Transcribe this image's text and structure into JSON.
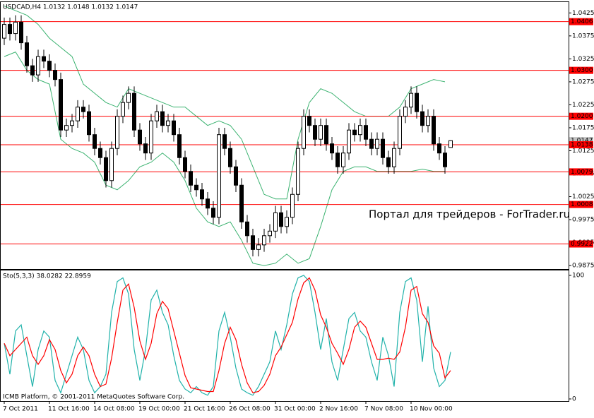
{
  "chart_data": [
    {
      "type": "candlestick",
      "title": "USDCAD,H4  1.0132 1.0148 1.0132 1.0147",
      "watermark": "Портал для трейдеров - ForTrader.ru",
      "categories": [
        "7 Oct 2011",
        null,
        null,
        null,
        null,
        null,
        null,
        null,
        "11 Oct 16:00",
        null,
        null,
        null,
        null,
        null,
        null,
        null,
        "14 Oct 08:00",
        null,
        null,
        null,
        null,
        null,
        null,
        null,
        "19 Oct 00:00",
        null,
        null,
        null,
        null,
        null,
        null,
        null,
        "21 Oct 16:00",
        null,
        null,
        null,
        null,
        null,
        null,
        null,
        "26 Oct 08:00",
        null,
        null,
        null,
        null,
        null,
        null,
        null,
        "31 Oct 00:00",
        null,
        null,
        null,
        null,
        null,
        null,
        null,
        "2 Nov 16:00",
        null,
        null,
        null,
        null,
        null,
        null,
        null,
        "7 Nov 08:00",
        null,
        null,
        null,
        null,
        null,
        null,
        null,
        "10 Nov 00:00",
        null,
        null,
        null,
        null,
        null,
        null,
        null
      ],
      "open": [
        1.037,
        1.04,
        1.038,
        1.0405,
        1.036,
        1.031,
        1.029,
        1.033,
        1.032,
        1.03,
        1.028,
        1.017,
        1.018,
        1.019,
        1.022,
        1.021,
        1.016,
        1.013,
        1.011,
        1.006,
        1.013,
        1.02,
        1.023,
        1.025,
        1.017,
        1.014,
        1.012,
        1.019,
        1.021,
        1.018,
        1.019,
        1.016,
        1.011,
        1.008,
        1.005,
        1.004,
        1.002,
        1.0,
        0.998,
        1.016,
        1.013,
        1.009,
        1.005,
        0.997,
        0.994,
        0.991,
        0.992,
        0.994,
        0.995,
        0.999,
        0.996,
        0.998,
        1.003,
        1.013,
        1.02,
        1.018,
        1.015,
        1.018,
        1.014,
        1.012,
        1.009,
        1.012,
        1.017,
        1.016,
        1.018,
        1.015,
        1.013,
        1.015,
        1.011,
        1.009,
        1.013,
        1.02,
        1.022,
        1.025,
        1.021,
        1.018,
        1.02,
        1.014,
        1.012,
        1.0132
      ],
      "high": [
        1.0415,
        1.0415,
        1.042,
        1.042,
        1.0375,
        1.0325,
        1.0345,
        1.0345,
        1.0335,
        1.0315,
        1.0295,
        1.0195,
        1.0205,
        1.0235,
        1.0235,
        1.0225,
        1.0175,
        1.0145,
        1.0125,
        1.0145,
        1.0215,
        1.0245,
        1.0265,
        1.0265,
        1.0185,
        1.0155,
        1.0205,
        1.0225,
        1.0225,
        1.0205,
        1.0205,
        1.0175,
        1.0125,
        1.0095,
        1.0065,
        1.0055,
        1.0035,
        1.0015,
        1.0175,
        1.0175,
        1.0145,
        1.0105,
        1.0065,
        0.9985,
        0.9955,
        0.9935,
        0.9955,
        0.9965,
        1.0005,
        1.0005,
        0.9995,
        1.0045,
        1.0145,
        1.0215,
        1.0215,
        1.0195,
        1.0195,
        1.0195,
        1.0155,
        1.0135,
        1.0135,
        1.0185,
        1.0185,
        1.0195,
        1.0195,
        1.0165,
        1.0165,
        1.0165,
        1.0125,
        1.0145,
        1.0215,
        1.0235,
        1.0265,
        1.0265,
        1.0225,
        1.0215,
        1.0215,
        1.0155,
        1.0135,
        1.0148
      ],
      "low": [
        1.0355,
        1.0365,
        1.0365,
        1.0345,
        1.0295,
        1.0275,
        1.0275,
        1.0305,
        1.0285,
        1.0265,
        1.0155,
        1.0155,
        1.0165,
        1.0175,
        1.0195,
        1.0145,
        1.0115,
        1.0095,
        1.0045,
        1.0045,
        1.0115,
        1.0185,
        1.0215,
        1.0155,
        1.0125,
        1.0105,
        1.0105,
        1.0175,
        1.0165,
        1.0165,
        1.0145,
        1.0095,
        1.0065,
        1.0035,
        1.0025,
        1.0005,
        0.9985,
        0.9965,
        0.9965,
        1.0115,
        1.0075,
        1.0035,
        0.9955,
        0.9925,
        0.9895,
        0.9895,
        0.9905,
        0.9925,
        0.9935,
        0.9945,
        0.9945,
        0.9965,
        1.0015,
        1.0115,
        1.0165,
        1.0135,
        1.0135,
        1.0125,
        1.0105,
        1.0075,
        1.0075,
        1.0105,
        1.0145,
        1.0145,
        1.0135,
        1.0115,
        1.0115,
        1.0095,
        1.0075,
        1.0075,
        1.0115,
        1.0185,
        1.0205,
        1.0195,
        1.0165,
        1.0165,
        1.0125,
        1.0105,
        1.0075,
        1.0132
      ],
      "close": [
        1.04,
        1.038,
        1.0405,
        1.036,
        1.031,
        1.029,
        1.033,
        1.032,
        1.03,
        1.028,
        1.017,
        1.018,
        1.019,
        1.022,
        1.021,
        1.016,
        1.013,
        1.011,
        1.006,
        1.013,
        1.02,
        1.023,
        1.025,
        1.017,
        1.014,
        1.012,
        1.019,
        1.021,
        1.018,
        1.019,
        1.016,
        1.011,
        1.008,
        1.005,
        1.004,
        1.002,
        1.0,
        0.998,
        1.016,
        1.013,
        1.009,
        1.005,
        0.997,
        0.994,
        0.991,
        0.992,
        0.994,
        0.995,
        0.999,
        0.996,
        0.998,
        1.003,
        1.013,
        1.02,
        1.018,
        1.015,
        1.018,
        1.014,
        1.012,
        1.009,
        1.012,
        1.017,
        1.016,
        1.018,
        1.015,
        1.013,
        1.015,
        1.011,
        1.009,
        1.013,
        1.02,
        1.022,
        1.025,
        1.021,
        1.018,
        1.02,
        1.014,
        1.012,
        1.009,
        1.0147
      ],
      "band_x": [
        0,
        2,
        4,
        6,
        8,
        10,
        12,
        14,
        16,
        18,
        20,
        22,
        24,
        26,
        28,
        30,
        32,
        34,
        36,
        38,
        40,
        42,
        44,
        46,
        48,
        50,
        52,
        54,
        56,
        58,
        60,
        62,
        64,
        66,
        68,
        70,
        72,
        74,
        76,
        78
      ],
      "bands": [
        {
          "color": "#3cb371",
          "values": [
            1.044,
            1.043,
            1.042,
            1.04,
            1.037,
            1.035,
            1.033,
            1.027,
            1.025,
            1.023,
            1.022,
            1.026,
            1.025,
            1.024,
            1.023,
            1.022,
            1.022,
            1.02,
            1.018,
            1.019,
            1.018,
            1.015,
            1.009,
            1.003,
            1.002,
            1.002,
            1.015,
            1.023,
            1.026,
            1.025,
            1.023,
            1.021,
            1.02,
            1.02,
            1.02,
            1.022,
            1.026,
            1.027,
            1.028,
            1.0275
          ]
        },
        {
          "color": "#3cb371",
          "values": [
            1.033,
            1.034,
            1.03,
            1.028,
            1.027,
            1.015,
            1.013,
            1.012,
            1.01,
            1.005,
            1.004,
            1.006,
            1.009,
            1.01,
            1.012,
            1.01,
            1.006,
            1.0,
            0.997,
            0.996,
            0.997,
            0.993,
            0.988,
            0.9875,
            0.988,
            0.99,
            0.988,
            0.989,
            0.996,
            1.004,
            1.008,
            1.009,
            1.009,
            1.008,
            1.008,
            1.008,
            1.008,
            1.0085,
            1.008,
            1.008
          ]
        }
      ],
      "levels": [
        1.0406,
        {
          "value": 1.03,
          "label": "1.0300"
        },
        {
          "value": 1.02,
          "label": "1.0200"
        },
        1.0138,
        1.0079,
        1.0008,
        0.9922
      ],
      "level_color": "#ff0000",
      "last_price": 1.0147,
      "ylim": [
        0.9869,
        1.0447
      ],
      "yticks": [
        1.0425,
        1.0375,
        1.0325,
        1.0275,
        1.0225,
        1.0175,
        1.0125,
        1.0075,
        1.0025,
        0.9975,
        0.9925,
        0.9875
      ]
    },
    {
      "type": "line",
      "title": "Sto(5,3,3) 38.0282 22.8959",
      "footer": "ICMB Platform, © 2001-2011 MetaQuotes Software Corp.",
      "series": [
        {
          "color": "#20b2aa",
          "values": [
            45,
            20,
            55,
            60,
            35,
            10,
            40,
            55,
            50,
            15,
            5,
            20,
            35,
            50,
            40,
            15,
            5,
            10,
            20,
            70,
            95,
            98,
            85,
            40,
            15,
            40,
            80,
            88,
            70,
            60,
            35,
            15,
            8,
            5,
            10,
            5,
            3,
            10,
            55,
            70,
            50,
            25,
            8,
            5,
            3,
            10,
            20,
            30,
            55,
            40,
            60,
            85,
            98,
            100,
            95,
            70,
            40,
            65,
            30,
            15,
            40,
            65,
            70,
            55,
            50,
            30,
            15,
            50,
            35,
            10,
            70,
            95,
            98,
            80,
            30,
            75,
            25,
            10,
            15,
            38
          ]
        },
        {
          "color": "#ff0000",
          "values": [
            45,
            35,
            40,
            45,
            50,
            35,
            28,
            35,
            48,
            40,
            23,
            13,
            20,
            35,
            42,
            35,
            20,
            10,
            12,
            33,
            62,
            88,
            93,
            74,
            47,
            32,
            45,
            69,
            79,
            73,
            55,
            37,
            19,
            9,
            8,
            7,
            6,
            6,
            23,
            45,
            58,
            48,
            28,
            13,
            5,
            6,
            11,
            20,
            35,
            42,
            52,
            62,
            81,
            94,
            98,
            88,
            68,
            58,
            45,
            37,
            28,
            40,
            58,
            63,
            58,
            45,
            32,
            32,
            33,
            32,
            38,
            58,
            88,
            91,
            69,
            62,
            43,
            37,
            17,
            23
          ]
        }
      ],
      "ylim": [
        0,
        100
      ],
      "yticks": [
        100,
        0
      ]
    }
  ]
}
